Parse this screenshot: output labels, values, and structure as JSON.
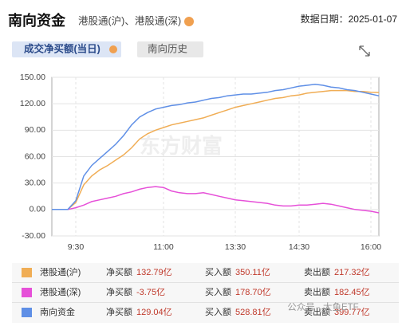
{
  "header": {
    "title": "南向资金",
    "subtitle": "港股通(沪)、港股通(深)",
    "date_label": "数据日期：2025-01-07"
  },
  "tabs": [
    "成交净买额(当日)",
    "南向历史"
  ],
  "watermarks": [
    "东方财富",
    "公众号 · 大鱼ETF"
  ],
  "chart_data": {
    "type": "line",
    "categories": [
      null,
      null,
      null,
      "9:30",
      null,
      null,
      null,
      null,
      null,
      null,
      null,
      null,
      null,
      null,
      "11:00",
      null,
      null,
      null,
      null,
      null,
      null,
      null,
      null,
      "13:30",
      null,
      null,
      null,
      null,
      null,
      null,
      null,
      "14:30",
      null,
      null,
      null,
      null,
      null,
      null,
      null,
      null,
      "16:00",
      null
    ],
    "series": [
      {
        "name": "港股通(沪)",
        "color": "#f0ad55",
        "values": [
          0,
          0,
          0,
          8,
          28,
          38,
          45,
          50,
          56,
          62,
          70,
          80,
          86,
          90,
          93,
          96,
          98,
          100,
          102,
          104,
          107,
          110,
          113,
          116,
          118,
          120,
          122,
          124,
          126,
          127,
          129,
          130,
          132,
          133,
          134,
          135,
          135,
          135,
          134,
          134,
          133,
          132.79
        ]
      },
      {
        "name": "港股通(深)",
        "color": "#e650d8",
        "values": [
          0,
          0,
          0,
          2,
          5,
          9,
          11,
          13,
          15,
          18,
          20,
          23,
          25,
          26,
          25,
          21,
          19,
          18,
          18,
          19,
          17,
          15,
          13,
          11,
          10,
          9,
          8,
          7,
          5,
          4,
          4,
          5,
          5,
          6,
          7,
          6,
          4,
          2,
          0,
          -1,
          -2,
          -3.75
        ]
      },
      {
        "name": "南向资金",
        "color": "#5f8fe6",
        "values": [
          0,
          0,
          0,
          10,
          38,
          50,
          58,
          66,
          74,
          84,
          96,
          105,
          110,
          114,
          116,
          118,
          119,
          121,
          122,
          124,
          126,
          127,
          129,
          130,
          131,
          131,
          132,
          133,
          135,
          136,
          138,
          140,
          141,
          142,
          141,
          139,
          138,
          136,
          135,
          133,
          131,
          129.04
        ]
      }
    ],
    "ylim": [
      -30,
      150
    ],
    "yticks": [
      {
        "value": -30,
        "label": "-30.00"
      },
      {
        "value": 0,
        "label": "0.00"
      },
      {
        "value": 30,
        "label": "30.00"
      },
      {
        "value": 60,
        "label": "60.00"
      },
      {
        "value": 90,
        "label": "90.00"
      },
      {
        "value": 120,
        "label": "120.00"
      },
      {
        "value": 150,
        "label": "150.00"
      }
    ],
    "grid": true
  },
  "table": {
    "rows": [
      {
        "net_label": "净买额",
        "net": "132.79亿",
        "buy_label": "买入额",
        "buy": "350.11亿",
        "sell_label": "卖出额",
        "sell": "217.32亿"
      },
      {
        "net_label": "净买额",
        "net": "-3.75亿",
        "buy_label": "买入额",
        "buy": "178.70亿",
        "sell_label": "卖出额",
        "sell": "182.45亿"
      },
      {
        "net_label": "净买额",
        "net": "129.04亿",
        "buy_label": "买入额",
        "buy": "528.81亿",
        "sell_label": "卖出额",
        "sell": "399.77亿"
      }
    ]
  }
}
